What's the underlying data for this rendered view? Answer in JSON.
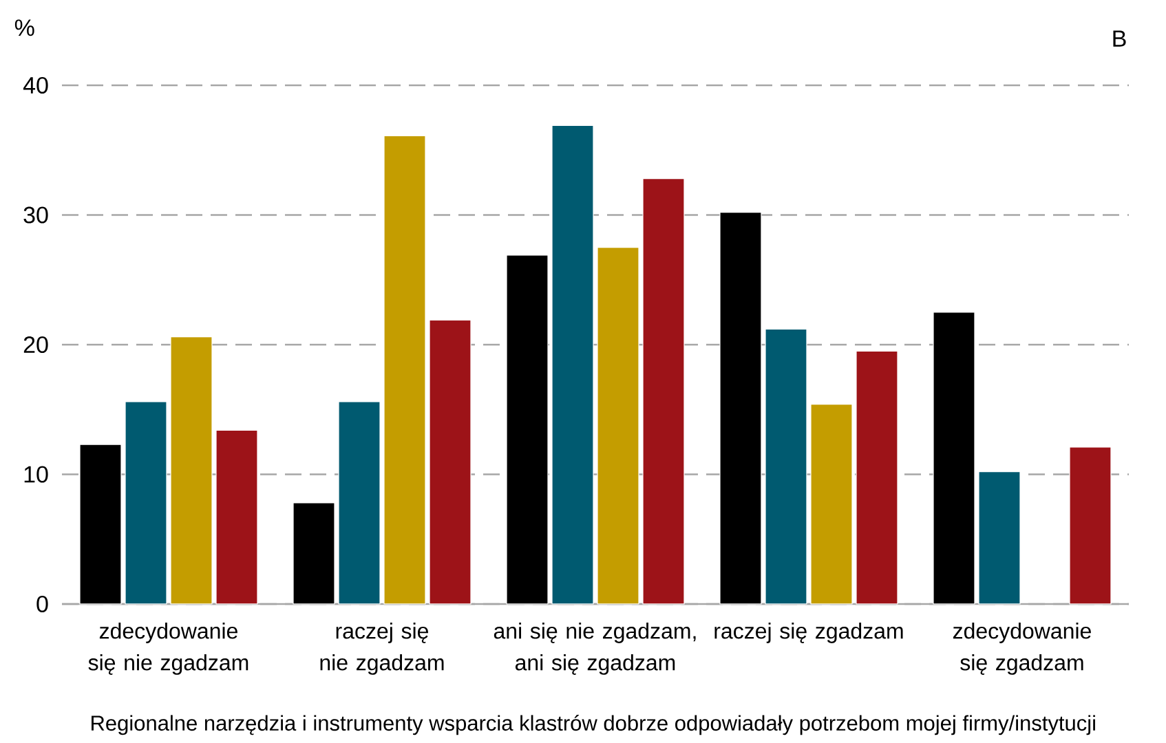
{
  "chart_data": {
    "type": "bar",
    "ylabel": "%",
    "xlabel": "Regionalne narzędzia i instrumenty wsparcia klastrów dobrze odpowiadały potrzebom mojej firmy/instytucji",
    "annotations": [
      "B"
    ],
    "categories": [
      "zdecydowanie się nie zgadzam",
      "raczej się nie zgadzam",
      "ani się nie zgadzam, ani się zgadzam",
      "raczej się zgadzam",
      "zdecydowanie się zgadzam"
    ],
    "series": [
      {
        "color": "#000000",
        "values": [
          12.3,
          7.8,
          26.9,
          30.2,
          22.5
        ]
      },
      {
        "color": "#005a70",
        "values": [
          15.6,
          15.6,
          36.9,
          21.2,
          10.2
        ]
      },
      {
        "color": "#c49d00",
        "values": [
          20.6,
          36.1,
          27.5,
          15.4,
          null
        ]
      },
      {
        "color": "#9d1318",
        "values": [
          13.4,
          21.9,
          32.8,
          19.5,
          12.1
        ]
      }
    ],
    "ylim": [
      0,
      40
    ],
    "yticks": [
      0,
      10,
      20,
      30,
      40
    ],
    "grid": "y"
  }
}
